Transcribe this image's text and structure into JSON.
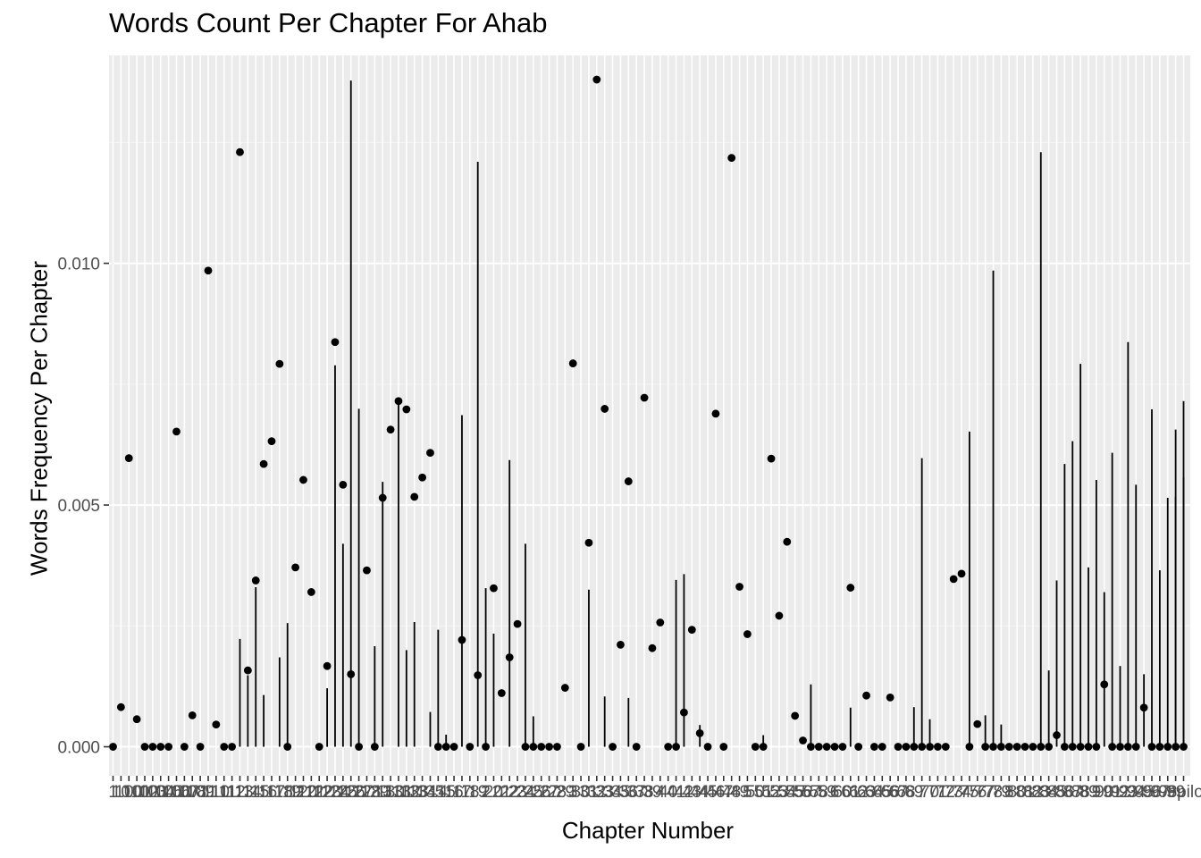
{
  "chart_data": {
    "type": "scatter",
    "title": "Words Count Per Chapter For Ahab",
    "xlabel": "Chapter Number",
    "ylabel": "Words Frequency Per Chapter",
    "ylim": [
      -0.0006,
      0.0143
    ],
    "yticks": [
      0,
      0.005,
      0.01
    ],
    "ytick_labels": [
      "0.000",
      "0.005",
      "0.010"
    ],
    "grid": true,
    "x_categories": [
      "1",
      "10",
      "100",
      "101",
      "102",
      "103",
      "104",
      "105",
      "106",
      "107",
      "108",
      "109",
      "11",
      "110",
      "111",
      "112",
      "113",
      "114",
      "115",
      "116",
      "117",
      "118",
      "119",
      "12",
      "120",
      "121",
      "122",
      "123",
      "124",
      "125",
      "126",
      "127",
      "128",
      "129",
      "13",
      "130",
      "131",
      "132",
      "133",
      "134",
      "135",
      "14",
      "15",
      "16",
      "17",
      "18",
      "19",
      "2",
      "20",
      "21",
      "22",
      "23",
      "24",
      "25",
      "26",
      "27",
      "28",
      "29",
      "3",
      "30",
      "31",
      "32",
      "33",
      "34",
      "35",
      "36",
      "37",
      "38",
      "39",
      "4",
      "40",
      "41",
      "42",
      "43",
      "44",
      "45",
      "46",
      "47",
      "48",
      "49",
      "5",
      "50",
      "51",
      "52",
      "53",
      "54",
      "55",
      "56",
      "57",
      "58",
      "59",
      "6",
      "60",
      "61",
      "62",
      "63",
      "64",
      "65",
      "66",
      "67",
      "68",
      "69",
      "7",
      "70",
      "71",
      "72",
      "73",
      "74",
      "75",
      "76",
      "77",
      "78",
      "79",
      "8",
      "80",
      "81",
      "82",
      "83",
      "84",
      "85",
      "86",
      "87",
      "88",
      "89",
      "9",
      "90",
      "91",
      "92",
      "93",
      "94",
      "95",
      "96",
      "97",
      "98",
      "99",
      "epilogue"
    ],
    "points": [
      {
        "x": "1",
        "y": 0.0
      },
      {
        "x": "10",
        "y": 0.00082
      },
      {
        "x": "100",
        "y": 0.00597
      },
      {
        "x": "101",
        "y": 0.00057
      },
      {
        "x": "102",
        "y": 0.0
      },
      {
        "x": "103",
        "y": 0.0
      },
      {
        "x": "104",
        "y": 0.0
      },
      {
        "x": "105",
        "y": 0.0
      },
      {
        "x": "106",
        "y": 0.00652
      },
      {
        "x": "107",
        "y": 0.0
      },
      {
        "x": "108",
        "y": 0.00065
      },
      {
        "x": "109",
        "y": 0.0
      },
      {
        "x": "11",
        "y": 0.00985
      },
      {
        "x": "110",
        "y": 0.00046
      },
      {
        "x": "111",
        "y": 0.0
      },
      {
        "x": "112",
        "y": 0.0
      },
      {
        "x": "113",
        "y": 0.0123
      },
      {
        "x": "114",
        "y": 0.00158
      },
      {
        "x": "115",
        "y": 0.00344
      },
      {
        "x": "116",
        "y": 0.00585
      },
      {
        "x": "117",
        "y": 0.00632
      },
      {
        "x": "118",
        "y": 0.00792
      },
      {
        "x": "119",
        "y": 0.0
      },
      {
        "x": "12",
        "y": 0.00371
      },
      {
        "x": "120",
        "y": 0.00552
      },
      {
        "x": "121",
        "y": 0.0032
      },
      {
        "x": "122",
        "y": 0.0
      },
      {
        "x": "123",
        "y": 0.00167
      },
      {
        "x": "124",
        "y": 0.00837
      },
      {
        "x": "125",
        "y": 0.00542
      },
      {
        "x": "126",
        "y": 0.0015
      },
      {
        "x": "127",
        "y": 0.0
      },
      {
        "x": "128",
        "y": 0.00365
      },
      {
        "x": "129",
        "y": 0.0
      },
      {
        "x": "13",
        "y": 0.00515
      },
      {
        "x": "130",
        "y": 0.00656
      },
      {
        "x": "131",
        "y": 0.00715
      },
      {
        "x": "132",
        "y": 0.00698
      },
      {
        "x": "133",
        "y": 0.00517
      },
      {
        "x": "134",
        "y": 0.00557
      },
      {
        "x": "135",
        "y": 0.00608
      },
      {
        "x": "14",
        "y": 0.0
      },
      {
        "x": "15",
        "y": 0.0
      },
      {
        "x": "16",
        "y": 0.0
      },
      {
        "x": "17",
        "y": 0.00221
      },
      {
        "x": "18",
        "y": 0.0
      },
      {
        "x": "19",
        "y": 0.00148
      },
      {
        "x": "2",
        "y": 0.0
      },
      {
        "x": "20",
        "y": 0.00328
      },
      {
        "x": "21",
        "y": 0.00111
      },
      {
        "x": "22",
        "y": 0.00185
      },
      {
        "x": "23",
        "y": 0.00254
      },
      {
        "x": "24",
        "y": 0.0
      },
      {
        "x": "25",
        "y": 0.0
      },
      {
        "x": "26",
        "y": 0.0
      },
      {
        "x": "27",
        "y": 0.0
      },
      {
        "x": "28",
        "y": 0.0
      },
      {
        "x": "29",
        "y": 0.00122
      },
      {
        "x": "3",
        "y": 0.00793
      },
      {
        "x": "30",
        "y": 0.0
      },
      {
        "x": "31",
        "y": 0.00422
      },
      {
        "x": "32",
        "y": 0.0138
      },
      {
        "x": "33",
        "y": 0.00699
      },
      {
        "x": "34",
        "y": 0.0
      },
      {
        "x": "35",
        "y": 0.00211
      },
      {
        "x": "36",
        "y": 0.00549
      },
      {
        "x": "37",
        "y": 0.0
      },
      {
        "x": "38",
        "y": 0.00722
      },
      {
        "x": "39",
        "y": 0.00204
      },
      {
        "x": "4",
        "y": 0.00257
      },
      {
        "x": "40",
        "y": 0.0
      },
      {
        "x": "41",
        "y": 0.0
      },
      {
        "x": "42",
        "y": 0.00071
      },
      {
        "x": "43",
        "y": 0.00242
      },
      {
        "x": "44",
        "y": 0.00028
      },
      {
        "x": "45",
        "y": 0.0
      },
      {
        "x": "46",
        "y": 0.00689
      },
      {
        "x": "47",
        "y": 0.0
      },
      {
        "x": "48",
        "y": 0.01218
      },
      {
        "x": "49",
        "y": 0.00331
      },
      {
        "x": "5",
        "y": 0.00233
      },
      {
        "x": "50",
        "y": 0.0
      },
      {
        "x": "51",
        "y": 0.0
      },
      {
        "x": "52",
        "y": 0.00596
      },
      {
        "x": "53",
        "y": 0.00271
      },
      {
        "x": "54",
        "y": 0.00424
      },
      {
        "x": "55",
        "y": 0.00064
      },
      {
        "x": "56",
        "y": 0.00013
      },
      {
        "x": "57",
        "y": 0.0
      },
      {
        "x": "58",
        "y": 0.0
      },
      {
        "x": "59",
        "y": 0.0
      },
      {
        "x": "6",
        "y": 0.0
      },
      {
        "x": "60",
        "y": 0.0
      },
      {
        "x": "61",
        "y": 0.00329
      },
      {
        "x": "62",
        "y": 0.0
      },
      {
        "x": "63",
        "y": 0.00106
      },
      {
        "x": "64",
        "y": 0.0
      },
      {
        "x": "65",
        "y": 0.0
      },
      {
        "x": "66",
        "y": 0.00102
      },
      {
        "x": "67",
        "y": 0.0
      },
      {
        "x": "68",
        "y": 0.0
      },
      {
        "x": "69",
        "y": 0.0
      },
      {
        "x": "7",
        "y": 0.0
      },
      {
        "x": "70",
        "y": 0.0
      },
      {
        "x": "71",
        "y": 0.0
      },
      {
        "x": "72",
        "y": 0.0
      },
      {
        "x": "73",
        "y": 0.00347
      },
      {
        "x": "74",
        "y": 0.00358
      },
      {
        "x": "75",
        "y": 0.0
      },
      {
        "x": "76",
        "y": 0.00047
      },
      {
        "x": "77",
        "y": 0.0
      },
      {
        "x": "78",
        "y": 0.0
      },
      {
        "x": "79",
        "y": 0.0
      },
      {
        "x": "8",
        "y": 0.0
      },
      {
        "x": "80",
        "y": 0.0
      },
      {
        "x": "81",
        "y": 0.0
      },
      {
        "x": "82",
        "y": 0.0
      },
      {
        "x": "83",
        "y": 0.0
      },
      {
        "x": "84",
        "y": 0.0
      },
      {
        "x": "85",
        "y": 0.00024
      },
      {
        "x": "86",
        "y": 0.0
      },
      {
        "x": "87",
        "y": 0.0
      },
      {
        "x": "88",
        "y": 0.0
      },
      {
        "x": "89",
        "y": 0.0
      },
      {
        "x": "9",
        "y": 0.0
      },
      {
        "x": "90",
        "y": 0.00129
      },
      {
        "x": "91",
        "y": 0.0
      },
      {
        "x": "92",
        "y": 0.0
      },
      {
        "x": "93",
        "y": 0.0
      },
      {
        "x": "94",
        "y": 0.0
      },
      {
        "x": "95",
        "y": 0.00081
      },
      {
        "x": "96",
        "y": 0.0
      },
      {
        "x": "97",
        "y": 0.0
      },
      {
        "x": "98",
        "y": 0.0
      },
      {
        "x": "99",
        "y": 0.0
      },
      {
        "x": "epilogue",
        "y": 0.0
      }
    ],
    "segments": [
      {
        "x": "113",
        "y": 0.00223
      },
      {
        "x": "114",
        "y": 0.00148
      },
      {
        "x": "115",
        "y": 0.0033
      },
      {
        "x": "116",
        "y": 0.00107
      },
      {
        "x": "118",
        "y": 0.00185
      },
      {
        "x": "119",
        "y": 0.00256
      },
      {
        "x": "123",
        "y": 0.00121
      },
      {
        "x": "124",
        "y": 0.00789
      },
      {
        "x": "125",
        "y": 0.0042
      },
      {
        "x": "126",
        "y": 0.01378
      },
      {
        "x": "127",
        "y": 0.00699
      },
      {
        "x": "129",
        "y": 0.00208
      },
      {
        "x": "13",
        "y": 0.00548
      },
      {
        "x": "131",
        "y": 0.00711
      },
      {
        "x": "132",
        "y": 0.002
      },
      {
        "x": "133",
        "y": 0.00258
      },
      {
        "x": "135",
        "y": 0.00072
      },
      {
        "x": "14",
        "y": 0.00242
      },
      {
        "x": "15",
        "y": 0.00025
      },
      {
        "x": "17",
        "y": 0.00686
      },
      {
        "x": "19",
        "y": 0.0121
      },
      {
        "x": "2",
        "y": 0.00328
      },
      {
        "x": "20",
        "y": 0.00234
      },
      {
        "x": "22",
        "y": 0.00593
      },
      {
        "x": "24",
        "y": 0.0042
      },
      {
        "x": "25",
        "y": 0.00063
      },
      {
        "x": "31",
        "y": 0.00325
      },
      {
        "x": "33",
        "y": 0.00104
      },
      {
        "x": "36",
        "y": 0.00101
      },
      {
        "x": "41",
        "y": 0.00345
      },
      {
        "x": "42",
        "y": 0.00357
      },
      {
        "x": "44",
        "y": 0.00045
      },
      {
        "x": "51",
        "y": 0.00024
      },
      {
        "x": "57",
        "y": 0.00129
      },
      {
        "x": "61",
        "y": 0.00081
      },
      {
        "x": "69",
        "y": 0.00082
      },
      {
        "x": "7",
        "y": 0.00597
      },
      {
        "x": "70",
        "y": 0.00057
      },
      {
        "x": "75",
        "y": 0.00652
      },
      {
        "x": "77",
        "y": 0.00065
      },
      {
        "x": "78",
        "y": 0.00985
      },
      {
        "x": "79",
        "y": 0.00046
      },
      {
        "x": "83",
        "y": 0.0123
      },
      {
        "x": "84",
        "y": 0.00158
      },
      {
        "x": "85",
        "y": 0.00344
      },
      {
        "x": "86",
        "y": 0.00585
      },
      {
        "x": "87",
        "y": 0.00632
      },
      {
        "x": "88",
        "y": 0.00792
      },
      {
        "x": "89",
        "y": 0.00371
      },
      {
        "x": "9",
        "y": 0.00552
      },
      {
        "x": "90",
        "y": 0.0032
      },
      {
        "x": "92",
        "y": 0.00167
      },
      {
        "x": "93",
        "y": 0.00837
      },
      {
        "x": "94",
        "y": 0.00542
      },
      {
        "x": "95",
        "y": 0.0015
      },
      {
        "x": "97",
        "y": 0.00365
      },
      {
        "x": "98",
        "y": 0.00515
      },
      {
        "x": "99",
        "y": 0.00656
      },
      {
        "x": "epilogue",
        "y": 0.00715
      }
    ],
    "extra_segments": [
      {
        "x": "91",
        "y": 0.00608
      },
      {
        "x": "96",
        "y": 0.00698
      },
      {
        "x": "99",
        "y": 0.00517
      },
      {
        "x": "epilogue",
        "y": 0.00557
      }
    ]
  }
}
